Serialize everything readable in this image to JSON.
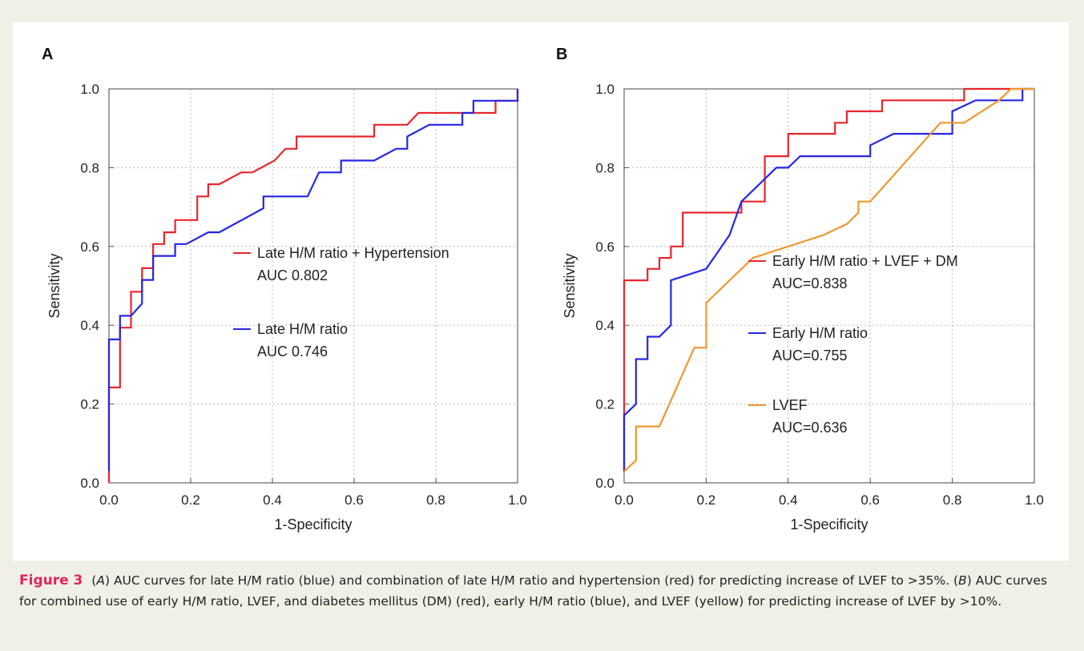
{
  "chart_data": [
    {
      "type": "line",
      "panel_label": "A",
      "xlabel": "1-Specificity",
      "ylabel": "Sensitivity",
      "xlim": [
        0,
        1
      ],
      "ylim": [
        0,
        1
      ],
      "xticks": [
        "0.0",
        "0.2",
        "0.4",
        "0.6",
        "0.8",
        "1.0"
      ],
      "yticks": [
        "0.0",
        "0.2",
        "0.4",
        "0.6",
        "0.8",
        "1.0"
      ],
      "grid": true,
      "legend_position": "center-right",
      "series": [
        {
          "name": "Late H/M ratio + Hypertension",
          "annotation": "AUC 0.802",
          "color": "#e8262c",
          "x": [
            0.0,
            0.0,
            0.027,
            0.027,
            0.054,
            0.054,
            0.081,
            0.081,
            0.108,
            0.108,
            0.135,
            0.135,
            0.162,
            0.162,
            0.216,
            0.216,
            0.243,
            0.243,
            0.27,
            0.324,
            0.351,
            0.405,
            0.432,
            0.432,
            0.459,
            0.459,
            0.649,
            0.649,
            0.73,
            0.757,
            0.757,
            0.865,
            0.946,
            0.946,
            1.0,
            1.0
          ],
          "y": [
            0.0,
            0.242,
            0.242,
            0.394,
            0.394,
            0.485,
            0.485,
            0.545,
            0.545,
            0.606,
            0.606,
            0.636,
            0.636,
            0.667,
            0.667,
            0.727,
            0.727,
            0.758,
            0.758,
            0.788,
            0.788,
            0.818,
            0.848,
            0.848,
            0.848,
            0.879,
            0.879,
            0.909,
            0.909,
            0.939,
            0.939,
            0.939,
            0.939,
            0.97,
            0.97,
            1.0
          ]
        },
        {
          "name": "Late H/M ratio",
          "annotation": "AUC 0.746",
          "color": "#2626e6",
          "x": [
            0.0,
            0.0,
            0.0,
            0.027,
            0.027,
            0.054,
            0.081,
            0.081,
            0.108,
            0.108,
            0.162,
            0.162,
            0.189,
            0.243,
            0.27,
            0.378,
            0.378,
            0.486,
            0.514,
            0.568,
            0.568,
            0.649,
            0.703,
            0.73,
            0.73,
            0.784,
            0.865,
            0.865,
            0.892,
            0.892,
            1.0,
            1.0
          ],
          "y": [
            0.03,
            0.242,
            0.364,
            0.364,
            0.424,
            0.424,
            0.455,
            0.515,
            0.515,
            0.576,
            0.576,
            0.606,
            0.606,
            0.636,
            0.636,
            0.697,
            0.727,
            0.727,
            0.788,
            0.788,
            0.818,
            0.818,
            0.848,
            0.848,
            0.879,
            0.909,
            0.909,
            0.939,
            0.939,
            0.97,
            0.97,
            1.0
          ]
        }
      ]
    },
    {
      "type": "line",
      "panel_label": "B",
      "xlabel": "1-Specificity",
      "ylabel": "Sensitivity",
      "xlim": [
        0,
        1
      ],
      "ylim": [
        0,
        1
      ],
      "xticks": [
        "0.0",
        "0.2",
        "0.4",
        "0.6",
        "0.8",
        "1.0"
      ],
      "yticks": [
        "0.0",
        "0.2",
        "0.4",
        "0.6",
        "0.8",
        "1.0"
      ],
      "grid": true,
      "legend_position": "center-right",
      "series": [
        {
          "name": "Early H/M ratio + LVEF + DM",
          "annotation": "AUC=0.838",
          "color": "#e8262c",
          "x": [
            0.0,
            0.0,
            0.0,
            0.057,
            0.057,
            0.086,
            0.086,
            0.114,
            0.114,
            0.143,
            0.143,
            0.286,
            0.286,
            0.343,
            0.343,
            0.4,
            0.4,
            0.514,
            0.514,
            0.543,
            0.543,
            0.629,
            0.629,
            0.829,
            0.829,
            0.943,
            0.943,
            1.0
          ],
          "y": [
            0.029,
            0.171,
            0.514,
            0.514,
            0.543,
            0.543,
            0.571,
            0.571,
            0.6,
            0.6,
            0.686,
            0.686,
            0.714,
            0.714,
            0.829,
            0.829,
            0.886,
            0.886,
            0.914,
            0.914,
            0.943,
            0.943,
            0.971,
            0.971,
            1.0,
            1.0,
            1.0,
            1.0
          ]
        },
        {
          "name": "Early H/M ratio",
          "annotation": "AUC=0.755",
          "color": "#2626e6",
          "x": [
            0.0,
            0.0,
            0.029,
            0.029,
            0.057,
            0.057,
            0.086,
            0.114,
            0.114,
            0.2,
            0.2,
            0.257,
            0.257,
            0.286,
            0.286,
            0.371,
            0.4,
            0.429,
            0.6,
            0.6,
            0.657,
            0.8,
            0.8,
            0.857,
            0.971,
            0.971,
            1.0
          ],
          "y": [
            0.029,
            0.171,
            0.2,
            0.314,
            0.314,
            0.371,
            0.371,
            0.4,
            0.514,
            0.543,
            0.543,
            0.629,
            0.629,
            0.714,
            0.714,
            0.8,
            0.8,
            0.829,
            0.829,
            0.857,
            0.886,
            0.886,
            0.943,
            0.971,
            0.971,
            1.0,
            1.0
          ]
        },
        {
          "name": "LVEF",
          "annotation": "AUC=0.636",
          "color": "#f0972e",
          "x": [
            0.0,
            0.029,
            0.029,
            0.086,
            0.171,
            0.2,
            0.2,
            0.314,
            0.486,
            0.543,
            0.571,
            0.571,
            0.6,
            0.771,
            0.829,
            0.914,
            0.943,
            1.0
          ],
          "y": [
            0.029,
            0.057,
            0.143,
            0.143,
            0.343,
            0.343,
            0.457,
            0.571,
            0.629,
            0.657,
            0.686,
            0.714,
            0.714,
            0.914,
            0.914,
            0.971,
            1.0,
            1.0
          ]
        }
      ]
    }
  ],
  "caption": {
    "label": "Figure 3",
    "a_ref": "A",
    "a_text": " AUC curves for late H/M ratio (blue) and combination of late H/M ratio and hypertension (red) for predicting increase of LVEF to >35%. (",
    "b_ref": "B",
    "b_text": ") AUC curves for combined use of early H/M ratio, LVEF, and diabetes mellitus (DM) (red), early H/M ratio (blue), and LVEF (yellow) for predicting increase of LVEF by >10%."
  }
}
